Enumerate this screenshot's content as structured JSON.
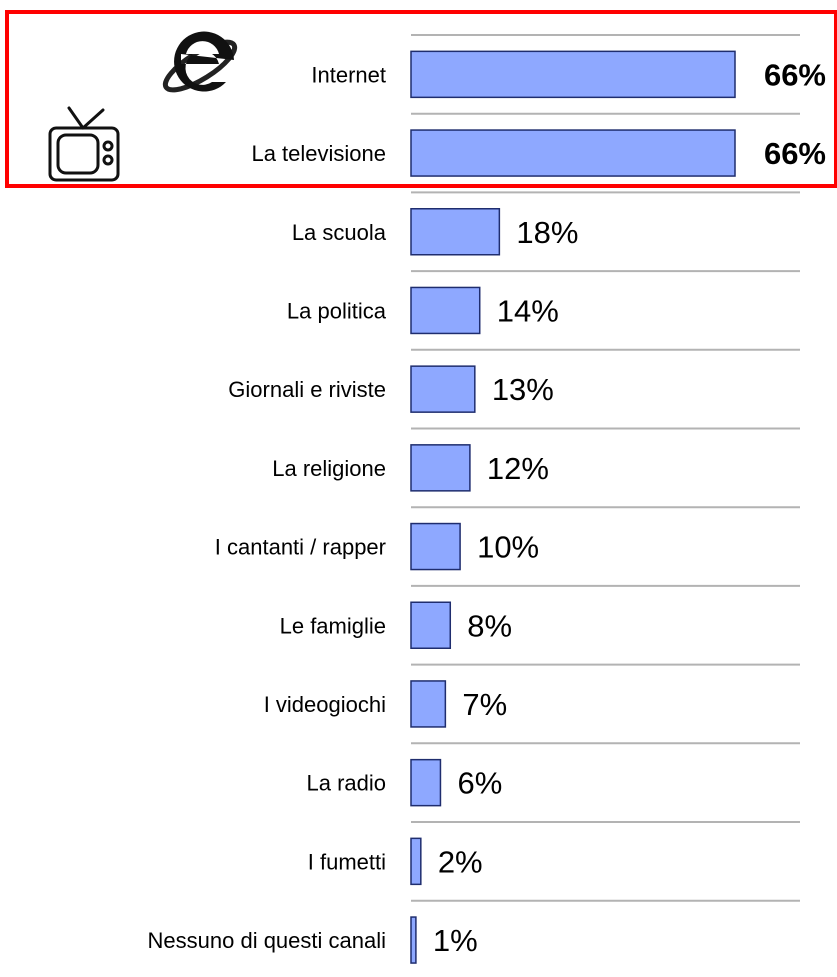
{
  "chart_data": {
    "type": "bar",
    "orientation": "horizontal",
    "categories": [
      "Internet",
      "La televisione",
      "La scuola",
      "La politica",
      "Giornali e riviste",
      "La religione",
      "I cantanti / rapper",
      "Le famiglie",
      "I videogiochi",
      "La radio",
      "I fumetti",
      "Nessuno di questi canali"
    ],
    "values": [
      66,
      66,
      18,
      14,
      13,
      12,
      10,
      8,
      7,
      6,
      2,
      1
    ],
    "value_labels": [
      "66%",
      "66%",
      "18%",
      "14%",
      "13%",
      "12%",
      "10%",
      "8%",
      "7%",
      "6%",
      "2%",
      "1%"
    ],
    "unit": "%",
    "highlighted_categories": [
      "Internet",
      "La televisione"
    ],
    "highlight_color": "#ff0000",
    "bar_color": "#8ea8ff",
    "bar_border_color": "#1f2d6e",
    "grid": true,
    "grid_color": "#b3b3b3",
    "legend": "none",
    "icons": [
      {
        "category": "Internet",
        "name": "internet-explorer-icon"
      },
      {
        "category": "La televisione",
        "name": "television-icon"
      }
    ]
  }
}
